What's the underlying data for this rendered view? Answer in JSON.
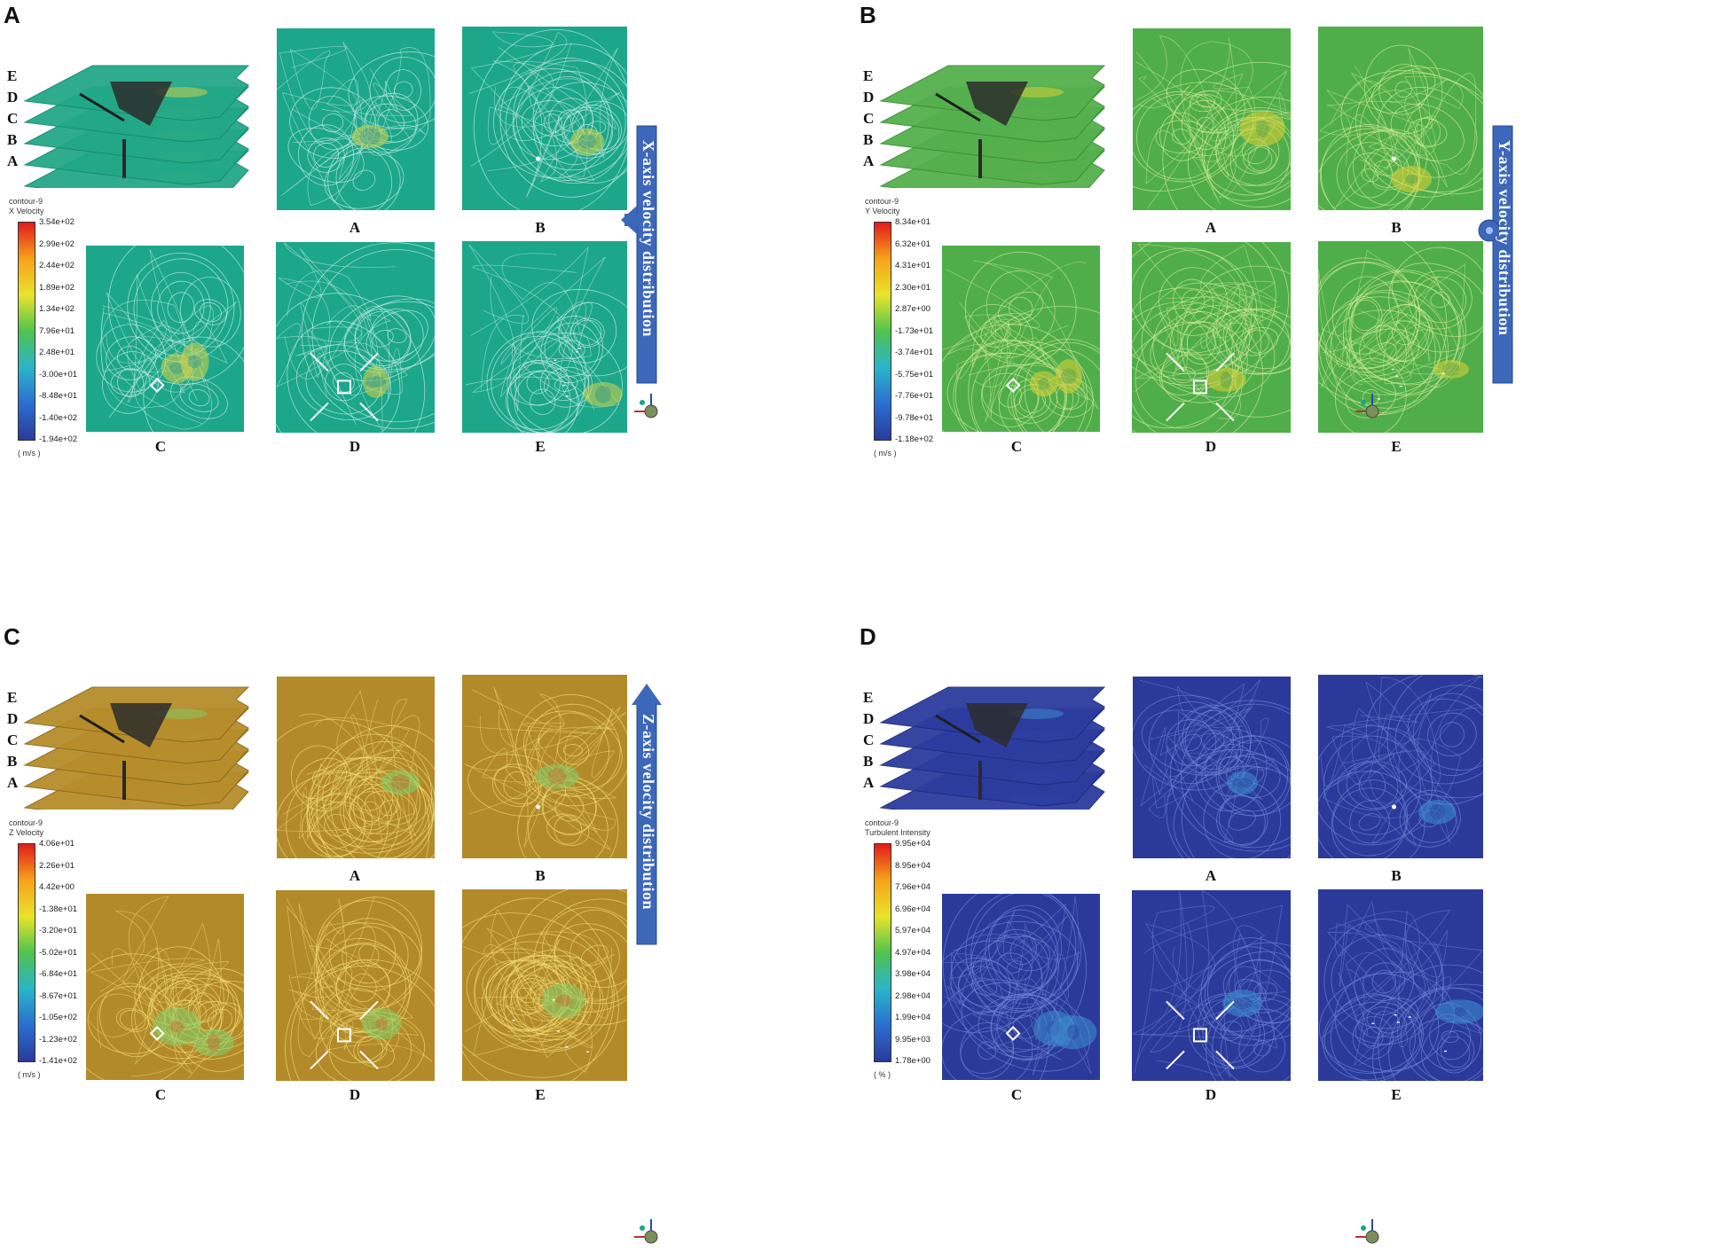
{
  "panels": [
    {
      "letter": "A",
      "theme": {
        "base": "#1ca68a",
        "contour": "#c9eee5",
        "plate": "#23a887",
        "plateEdge": "#178a70",
        "hot": "#d9d34a",
        "cool": "#1b8c9c"
      },
      "colorbar": {
        "title1": "contour-9",
        "title2": "X Velocity",
        "unit": "( m/s )",
        "ticks": [
          "3.54e+02",
          "2.99e+02",
          "2.44e+02",
          "1.89e+02",
          "1.34e+02",
          "7.96e+01",
          "2.48e+01",
          "-3.00e+01",
          "-8.48e+01",
          "-1.40e+02",
          "-1.94e+02"
        ]
      },
      "arrow": {
        "text": "X-axis velocity distribution",
        "direction": "left"
      },
      "stack_labels": [
        "E",
        "D",
        "C",
        "B",
        "A"
      ],
      "slice_labels": [
        "A",
        "B",
        "C",
        "D",
        "E"
      ]
    },
    {
      "letter": "B",
      "theme": {
        "base": "#4fae4a",
        "contour": "#d3ea9a",
        "plate": "#54b04c",
        "plateEdge": "#3c8f38",
        "hot": "#e0d234",
        "cool": "#3f9a57"
      },
      "colorbar": {
        "title1": "contour-9",
        "title2": "Y Velocity",
        "unit": "( m/s )",
        "ticks": [
          "8.34e+01",
          "6.32e+01",
          "4.31e+01",
          "2.30e+01",
          "2.87e+00",
          "-1.73e+01",
          "-3.74e+01",
          "-5.75e+01",
          "-7.76e+01",
          "-9.78e+01",
          "-1.18e+02"
        ]
      },
      "arrow": {
        "text": "Y-axis velocity distribution",
        "direction": "circle"
      },
      "stack_labels": [
        "E",
        "D",
        "C",
        "B",
        "A"
      ],
      "slice_labels": [
        "A",
        "B",
        "C",
        "D",
        "E"
      ]
    },
    {
      "letter": "C",
      "theme": {
        "base": "#b38a2a",
        "contour": "#f1de74",
        "plate": "#b78d2c",
        "plateEdge": "#8a6a1c",
        "hot": "#7fd06a",
        "cool": "#d45a22"
      },
      "colorbar": {
        "title1": "contour-9",
        "title2": "Z Velocity",
        "unit": "( m/s )",
        "ticks": [
          "4.06e+01",
          "2.26e+01",
          "4.42e+00",
          "-1.38e+01",
          "-3.20e+01",
          "-5.02e+01",
          "-6.84e+01",
          "-8.67e+01",
          "-1.05e+02",
          "-1.23e+02",
          "-1.41e+02"
        ]
      },
      "arrow": {
        "text": "Z-axis velocity distribution",
        "direction": "up"
      },
      "stack_labels": [
        "E",
        "D",
        "C",
        "B",
        "A"
      ],
      "slice_labels": [
        "A",
        "B",
        "C",
        "D",
        "E"
      ]
    },
    {
      "letter": "D",
      "theme": {
        "base": "#2b3a9a",
        "contour": "#6c86d6",
        "plate": "#2c3c9e",
        "plateEdge": "#1f2c7c",
        "hot": "#3d8fd0",
        "cool": "#2a3a96"
      },
      "colorbar": {
        "title1": "contour-9",
        "title2": "Turbulent Intensity",
        "unit": "( % )",
        "ticks": [
          "9.95e+04",
          "8.95e+04",
          "7.96e+04",
          "6.96e+04",
          "5.97e+04",
          "4.97e+04",
          "3.98e+04",
          "2.98e+04",
          "1.99e+04",
          "9.95e+03",
          "1.78e+00"
        ]
      },
      "arrow": {
        "text": "",
        "direction": "none"
      },
      "stack_labels": [
        "E",
        "D",
        "C",
        "B",
        "A"
      ],
      "slice_labels": [
        "A",
        "B",
        "C",
        "D",
        "E"
      ]
    }
  ]
}
